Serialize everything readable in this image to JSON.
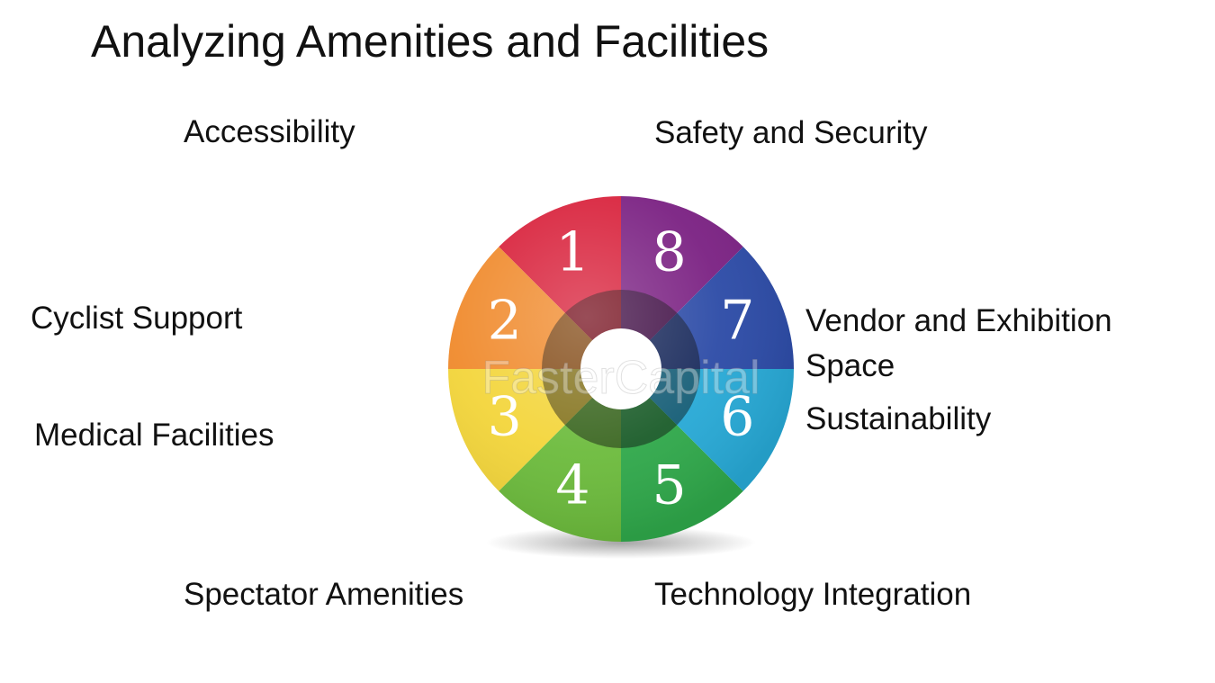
{
  "title": "Analyzing Amenities and Facilities",
  "labels": {
    "accessibility": "Accessibility",
    "safety": "Safety and Security",
    "cyclist": "Cyclist Support",
    "vendor": "Vendor and Exhibition Space",
    "sustainability": "Sustainability",
    "medical": "Medical Facilities",
    "spectator": "Spectator Amenities",
    "technology": "Technology Integration"
  },
  "wheel": {
    "segments": [
      {
        "number": "1",
        "color": "#d8203a"
      },
      {
        "number": "2",
        "color": "#f08a2c"
      },
      {
        "number": "3",
        "color": "#f3d53a"
      },
      {
        "number": "4",
        "color": "#6cbb3c"
      },
      {
        "number": "5",
        "color": "#2fa84a"
      },
      {
        "number": "6",
        "color": "#27a9d6"
      },
      {
        "number": "7",
        "color": "#2b4aa6"
      },
      {
        "number": "8",
        "color": "#7a2082"
      }
    ]
  },
  "watermark": "FasterCapital"
}
